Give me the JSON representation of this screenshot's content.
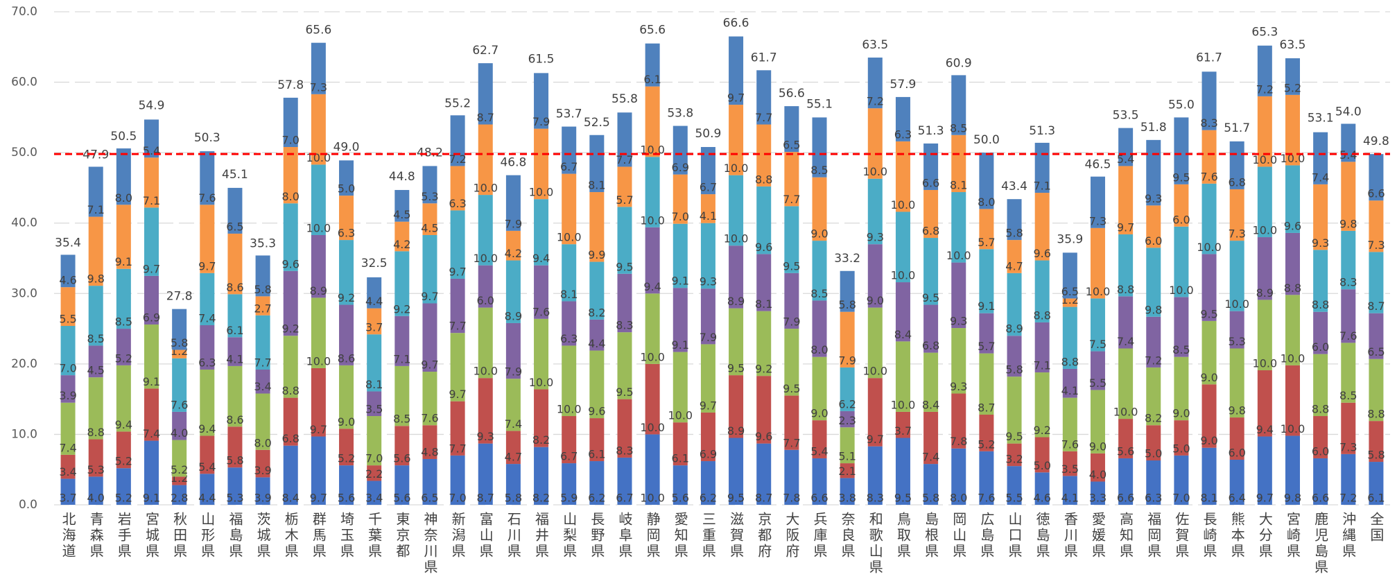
{
  "chart_data": {
    "type": "stacked_bar",
    "categories": [
      "北海道",
      "青森県",
      "岩手県",
      "宮城県",
      "秋田県",
      "山形県",
      "福島県",
      "茨城県",
      "栃木県",
      "群馬県",
      "埼玉県",
      "千葉県",
      "東京都",
      "神奈川県",
      "新潟県",
      "富山県",
      "石川県",
      "福井県",
      "山梨県",
      "長野県",
      "岐阜県",
      "静岡県",
      "愛知県",
      "三重県",
      "滋賀県",
      "京都府",
      "大阪府",
      "兵庫県",
      "奈良県",
      "和歌山県",
      "鳥取県",
      "島根県",
      "岡山県",
      "広島県",
      "山口県",
      "徳島県",
      "香川県",
      "愛媛県",
      "高知県",
      "福岡県",
      "佐賀県",
      "長崎県",
      "熊本県",
      "大分県",
      "宮崎県",
      "鹿児島県",
      "沖縄県",
      "全国"
    ],
    "series": [
      {
        "color": "#4472c4",
        "values": [
          3.7,
          4.0,
          5.2,
          9.1,
          2.8,
          4.4,
          5.3,
          3.9,
          8.4,
          9.7,
          5.6,
          3.4,
          5.6,
          6.5,
          7.0,
          8.7,
          5.8,
          8.2,
          5.9,
          6.2,
          6.7,
          10.0,
          5.6,
          6.2,
          9.5,
          8.7,
          7.8,
          6.6,
          3.8,
          8.3,
          9.5,
          5.8,
          8.0,
          7.6,
          5.5,
          4.6,
          4.1,
          3.3,
          6.6,
          6.3,
          7.0,
          8.1,
          6.4,
          9.7,
          9.8,
          6.6,
          7.2,
          6.1
        ],
        "value_labels": [
          "3.7",
          "4.0",
          "5.2",
          "9.1",
          "2.8",
          "4.4",
          "5.3",
          "3.9",
          "8.4",
          "9.7",
          "5.6",
          "3.4",
          "5.6",
          "6.5",
          "7.0",
          "8.7",
          "5.8",
          "8.2",
          "5.9",
          "6.2",
          "6.7",
          "10.0",
          "5.6",
          "6.2",
          "9.5",
          "8.7",
          "7.8",
          "6.6",
          "3.8",
          "8.3",
          "9.5",
          "5.8",
          "8.0",
          "7.6",
          "5.5",
          "4.6",
          "4.1",
          "3.3",
          "6.6",
          "6.3",
          "7.0",
          "8.1",
          "6.4",
          "9.7",
          "9.8",
          "6.6",
          "7.2",
          "6.1"
        ]
      },
      {
        "color": "#c0504d",
        "values": [
          3.4,
          5.3,
          5.2,
          7.4,
          1.2,
          5.4,
          5.8,
          3.9,
          6.8,
          9.7,
          5.2,
          2.2,
          5.6,
          4.8,
          7.7,
          9.3,
          4.7,
          8.2,
          6.7,
          6.1,
          8.3,
          10.0,
          6.1,
          6.9,
          8.9,
          9.6,
          7.7,
          5.4,
          2.1,
          9.7,
          3.7,
          7.4,
          7.8,
          5.2,
          3.2,
          5.0,
          3.5,
          4.0,
          5.6,
          5.0,
          5.0,
          9.0,
          6.0,
          9.4,
          10.0,
          6.0,
          7.3,
          5.8
        ],
        "value_labels": [
          "3.4",
          "5.3",
          "5.2",
          "7.4",
          "1.2",
          "5.4",
          "5.8",
          "3.9",
          "6.8",
          "9.7",
          "5.2",
          "2.2",
          "5.6",
          "4.8",
          "7.7",
          "9.3",
          "4.7",
          "8.2",
          "6.7",
          "6.1",
          "8.3",
          "10.0",
          "6.1",
          "6.9",
          "8.9",
          "9.6",
          "7.7",
          "5.4",
          "2.1",
          "9.7",
          "3.7",
          "7.4",
          "7.8",
          "5.2",
          "3.2",
          "5.0",
          "3.5",
          "4.0",
          "5.6",
          "5.0",
          "5.0",
          "9.0",
          "6.0",
          "9.4",
          "10.0",
          "6.0",
          "7.3",
          "5.8"
        ]
      },
      {
        "color": "#9bbb59",
        "values": [
          7.4,
          8.8,
          9.4,
          9.1,
          5.2,
          9.4,
          8.6,
          8.0,
          8.8,
          10.0,
          9.0,
          7.0,
          8.5,
          7.6,
          9.7,
          10.0,
          7.4,
          10.0,
          10.0,
          9.6,
          9.5,
          10.0,
          10.0,
          9.7,
          9.5,
          9.2,
          9.5,
          9.0,
          5.1,
          10.0,
          10.0,
          8.4,
          9.3,
          8.7,
          9.5,
          9.2,
          7.6,
          9.0,
          10.0,
          8.2,
          9.0,
          9.0,
          9.8,
          10.0,
          10.0,
          8.8,
          8.5,
          8.8
        ],
        "value_labels": [
          "7.4",
          "8.8",
          "9.4",
          "9.1",
          "5.2",
          "9.4",
          "8.6",
          "8.0",
          "8.8",
          "10.0",
          "9.0",
          "7.0",
          "8.5",
          "7.6",
          "9.7",
          "10.0",
          "7.4",
          "10.0",
          "10.0",
          "9.6",
          "9.5",
          "10.0",
          "10.0",
          "9.7",
          "9.5",
          "9.2",
          "9.5",
          "9.0",
          "5.1",
          "10.0",
          "10.0",
          "8.4",
          "9.3",
          "8.7",
          "9.5",
          "9.2",
          "7.6",
          "9.0",
          "10.0",
          "8.2",
          "9.0",
          "9.0",
          "9.8",
          "10.0",
          "10.0",
          "8.8",
          "8.5",
          "8.8"
        ]
      },
      {
        "color": "#8064a2",
        "values": [
          3.9,
          4.5,
          5.2,
          6.9,
          4.0,
          6.3,
          4.1,
          3.4,
          9.2,
          8.9,
          8.6,
          3.5,
          7.1,
          9.7,
          7.7,
          6.0,
          7.9,
          7.6,
          6.3,
          4.4,
          8.3,
          9.4,
          9.1,
          7.9,
          8.9,
          8.1,
          7.9,
          8.0,
          2.3,
          9.0,
          8.4,
          6.8,
          9.3,
          5.7,
          5.8,
          7.1,
          4.1,
          5.5,
          7.4,
          7.2,
          8.5,
          9.5,
          5.3,
          8.9,
          8.8,
          6.0,
          7.6,
          6.5
        ],
        "value_labels": [
          "3.9",
          "4.5",
          "5.2",
          "6.9",
          "4.0",
          "6.3",
          "4.1",
          "3.4",
          "9.2",
          "8.9",
          "8.6",
          "3.5",
          "7.1",
          "9.7",
          "7.7",
          "6.0",
          "7.9",
          "7.6",
          "6.3",
          "4.4",
          "8.3",
          "9.4",
          "9.1",
          "7.9",
          "8.9",
          "8.1",
          "7.9",
          "8.0",
          "2.3",
          "9.0",
          "8.4",
          "6.8",
          "9.3",
          "5.7",
          "5.8",
          "7.1",
          "4.1",
          "5.5",
          "7.4",
          "7.2",
          "8.5",
          "9.5",
          "5.3",
          "8.9",
          "8.8",
          "6.0",
          "7.6",
          "6.5"
        ]
      },
      {
        "color": "#4bacc6",
        "values": [
          7.0,
          8.5,
          8.5,
          9.7,
          7.6,
          7.4,
          6.1,
          7.7,
          9.6,
          10.0,
          9.2,
          8.1,
          9.2,
          9.7,
          9.7,
          10.0,
          8.9,
          9.4,
          8.1,
          8.2,
          9.5,
          10.0,
          9.1,
          9.3,
          10.0,
          9.6,
          9.5,
          8.5,
          6.2,
          9.3,
          10.0,
          9.5,
          10.0,
          9.1,
          8.9,
          8.8,
          8.8,
          7.5,
          8.8,
          9.8,
          10.0,
          10.0,
          10.0,
          10.0,
          9.6,
          8.8,
          8.3,
          8.7
        ],
        "value_labels": [
          "7.0",
          "8.5",
          "8.5",
          "9.7",
          "7.6",
          "7.4",
          "6.1",
          "7.7",
          "9.6",
          "10.0",
          "9.2",
          "8.1",
          "9.2",
          "9.7",
          "9.7",
          "10.0",
          "8.9",
          "9.4",
          "8.1",
          "8.2",
          "9.5",
          "10.0",
          "9.1",
          "9.3",
          "10.0",
          "9.6",
          "9.5",
          "8.5",
          "6.2",
          "9.3",
          "10.0",
          "9.5",
          "10.0",
          "9.1",
          "8.9",
          "8.8",
          "8.8",
          "7.5",
          "8.8",
          "9.8",
          "10.0",
          "10.0",
          "10.0",
          "10.0",
          "9.6",
          "8.8",
          "8.3",
          "8.7"
        ]
      },
      {
        "color": "#f79646",
        "values": [
          5.5,
          9.8,
          9.1,
          7.1,
          1.2,
          9.7,
          8.6,
          2.7,
          8.0,
          10.0,
          6.3,
          3.7,
          4.2,
          4.5,
          6.3,
          10.0,
          4.2,
          10.0,
          10.0,
          9.9,
          5.7,
          10.0,
          7.0,
          4.1,
          10.0,
          8.8,
          7.7,
          9.0,
          7.9,
          10.0,
          10.0,
          6.8,
          8.1,
          5.7,
          4.7,
          9.6,
          1.2,
          10.0,
          9.7,
          6.0,
          6.0,
          7.6,
          7.3,
          10.0,
          10.0,
          9.3,
          9.8,
          7.3
        ],
        "value_labels": [
          "5.5",
          "9.8",
          "9.1",
          "7.1",
          "1.2",
          "9.7",
          "8.6",
          "2.7",
          "8.0",
          "10.0",
          "6.3",
          "3.7",
          "4.2",
          "4.5",
          "6.3",
          "10.0",
          "4.2",
          "10.0",
          "10.0",
          "9.9",
          "5.7",
          "10.0",
          "7.0",
          "4.1",
          "10.0",
          "8.8",
          "7.7",
          "9.0",
          "7.9",
          "10.0",
          "10.0",
          "6.8",
          "8.1",
          "5.7",
          "4.7",
          "9.6",
          "1.2",
          "10.0",
          "9.7",
          "6.0",
          "6.0",
          "7.6",
          "7.3",
          "10.0",
          "10.0",
          "9.3",
          "9.8",
          "7.3"
        ]
      },
      {
        "color": "#4f81bd",
        "values": [
          4.6,
          7.1,
          8.0,
          5.4,
          5.8,
          7.6,
          6.5,
          5.8,
          7.0,
          7.3,
          5.0,
          4.4,
          4.5,
          5.3,
          7.2,
          8.7,
          7.9,
          7.9,
          6.7,
          8.1,
          7.7,
          6.1,
          6.9,
          6.7,
          9.7,
          7.7,
          6.5,
          8.5,
          5.8,
          7.2,
          6.3,
          6.6,
          8.5,
          8.0,
          5.8,
          7.1,
          6.5,
          7.3,
          5.4,
          9.3,
          9.5,
          8.3,
          6.8,
          7.2,
          5.2,
          7.4,
          5.4,
          6.6
        ],
        "value_labels": [
          "4.6",
          "7.1",
          "8.0",
          "5.4",
          "5.8",
          "7.6",
          "6.5",
          "5.8",
          "7.0",
          "7.3",
          "5.0",
          "4.4",
          "4.5",
          "5.3",
          "7.2",
          "8.7",
          "7.9",
          "7.9",
          "6.7",
          "8.1",
          "7.7",
          "6.1",
          "6.9",
          "6.7",
          "9.7",
          "7.7",
          "6.5",
          "8.5",
          "5.8",
          "7.2",
          "6.3",
          "6.6",
          "8.5",
          "8.0",
          "5.8",
          "7.1",
          "6.5",
          "7.3",
          "5.4",
          "9.3",
          "9.5",
          "8.3",
          "6.8",
          "7.2",
          "5.2",
          "7.4",
          "5.4",
          "6.6"
        ]
      }
    ],
    "totals": [
      35.4,
      47.9,
      50.5,
      54.9,
      27.8,
      50.3,
      45.1,
      35.3,
      57.8,
      65.6,
      49.0,
      32.5,
      44.8,
      48.2,
      55.2,
      62.7,
      46.8,
      61.5,
      53.7,
      52.5,
      55.8,
      65.6,
      53.8,
      50.9,
      66.6,
      61.7,
      56.6,
      55.1,
      33.2,
      63.5,
      57.9,
      51.3,
      60.9,
      50.0,
      43.4,
      51.3,
      35.9,
      46.5,
      53.5,
      51.8,
      55.0,
      61.7,
      51.7,
      65.3,
      63.5,
      53.1,
      54.0,
      49.8
    ],
    "total_labels": [
      "35.4",
      "47.9",
      "50.5",
      "54.9",
      "27.8",
      "50.3",
      "45.1",
      "35.3",
      "57.8",
      "65.6",
      "49.0",
      "32.5",
      "44.8",
      "48.2",
      "55.2",
      "62.7",
      "46.8",
      "61.5",
      "53.7",
      "52.5",
      "55.8",
      "65.6",
      "53.8",
      "50.9",
      "66.6",
      "61.7",
      "56.6",
      "55.1",
      "33.2",
      "63.5",
      "57.9",
      "51.3",
      "60.9",
      "50.0",
      "43.4",
      "51.3",
      "35.9",
      "46.5",
      "53.5",
      "51.8",
      "55.0",
      "61.7",
      "51.7",
      "65.3",
      "63.5",
      "53.1",
      "54.0",
      "49.8"
    ],
    "ylim": [
      0,
      70
    ],
    "yticks": [
      {
        "value": 0,
        "label": "0.0"
      },
      {
        "value": 10,
        "label": "10.0"
      },
      {
        "value": 20,
        "label": "20.0"
      },
      {
        "value": 30,
        "label": "30.0"
      },
      {
        "value": 40,
        "label": "40.0"
      },
      {
        "value": 50,
        "label": "50.0"
      },
      {
        "value": 60,
        "label": "60.0"
      },
      {
        "value": 70,
        "label": "70.0"
      }
    ],
    "grid": true,
    "reference_line": {
      "value": 49.8,
      "color": "#ff0000",
      "style": "dashed"
    }
  }
}
